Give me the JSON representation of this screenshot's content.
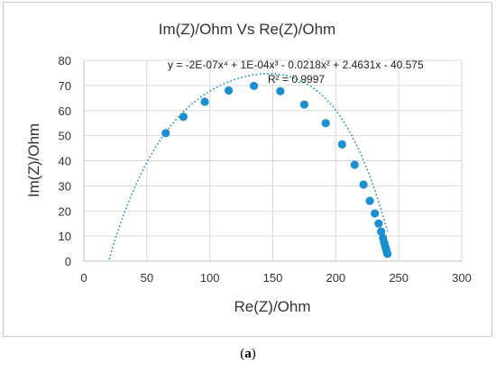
{
  "caption": {
    "open": "(",
    "letter": "a",
    "close": ")"
  },
  "chart_data": {
    "type": "scatter",
    "title": "Im(Z)/Ohm Vs Re(Z)/Ohm",
    "xlabel": "Re(Z)/Ohm",
    "ylabel": "Im(Z)/Ohm",
    "xlim": [
      0,
      300
    ],
    "ylim": [
      0,
      80
    ],
    "xticks": [
      "0",
      "50",
      "100",
      "150",
      "200",
      "250",
      "300"
    ],
    "yticks": [
      "0",
      "10",
      "20",
      "30",
      "40",
      "50",
      "60",
      "70",
      "80"
    ],
    "grid": true,
    "marker_color": "#1a8fd1",
    "points": [
      {
        "x": 65,
        "y": 51
      },
      {
        "x": 79,
        "y": 57.5
      },
      {
        "x": 96,
        "y": 63.5
      },
      {
        "x": 115,
        "y": 68
      },
      {
        "x": 135,
        "y": 69.8
      },
      {
        "x": 156,
        "y": 67.7
      },
      {
        "x": 175,
        "y": 62.4
      },
      {
        "x": 192,
        "y": 55
      },
      {
        "x": 205,
        "y": 46.5
      },
      {
        "x": 215,
        "y": 38.4
      },
      {
        "x": 222,
        "y": 30.5
      },
      {
        "x": 227,
        "y": 24
      },
      {
        "x": 231,
        "y": 19
      },
      {
        "x": 234,
        "y": 15
      },
      {
        "x": 236,
        "y": 11.8
      },
      {
        "x": 237.5,
        "y": 9.2
      },
      {
        "x": 238.5,
        "y": 7.3
      },
      {
        "x": 239.3,
        "y": 5.8
      },
      {
        "x": 240,
        "y": 4.6
      },
      {
        "x": 240.5,
        "y": 3.6
      },
      {
        "x": 241,
        "y": 2.9
      }
    ],
    "trendline": {
      "style": "dotted",
      "coefficients": [
        -2e-07,
        0.0001,
        -0.0218,
        2.4631,
        -40.575
      ],
      "equation": "y = -2E-07x⁴ + 1E-04x³ - 0.0218x² + 2.4631x - 40.575",
      "r2_label": "R² = 0.9997",
      "x_start": 20,
      "x_end": 241
    }
  }
}
